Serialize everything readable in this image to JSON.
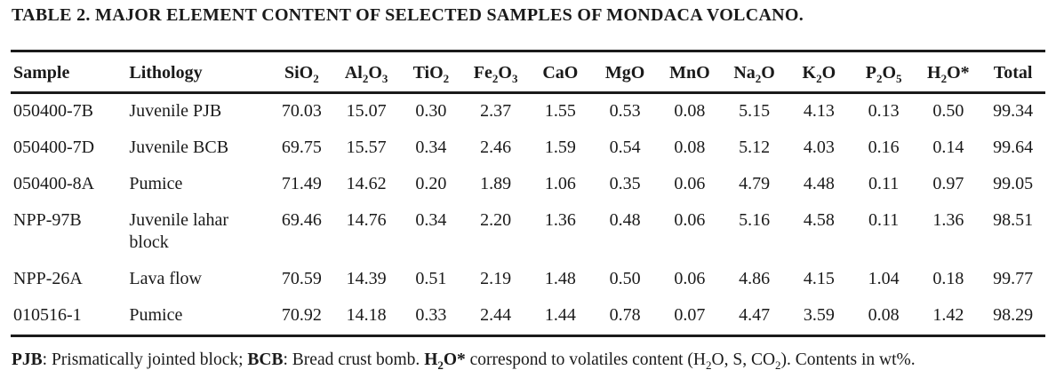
{
  "page": {
    "title": "TABLE 2. MAJOR ELEMENT CONTENT OF SELECTED SAMPLES OF MONDACA VOLCANO."
  },
  "table": {
    "headers": [
      {
        "id": "sample",
        "align": "left",
        "runs": [
          {
            "t": "Sample"
          }
        ]
      },
      {
        "id": "lithology",
        "align": "left",
        "runs": [
          {
            "t": "Lithology"
          }
        ]
      },
      {
        "id": "sio2",
        "runs": [
          {
            "t": "SiO"
          },
          {
            "t": "2",
            "s": true
          }
        ]
      },
      {
        "id": "al2o3",
        "runs": [
          {
            "t": "Al"
          },
          {
            "t": "2",
            "s": true
          },
          {
            "t": "O"
          },
          {
            "t": "3",
            "s": true
          }
        ]
      },
      {
        "id": "tio2",
        "runs": [
          {
            "t": "TiO"
          },
          {
            "t": "2",
            "s": true
          }
        ]
      },
      {
        "id": "fe2o3",
        "runs": [
          {
            "t": "Fe"
          },
          {
            "t": "2",
            "s": true
          },
          {
            "t": "O"
          },
          {
            "t": "3",
            "s": true
          }
        ]
      },
      {
        "id": "cao",
        "runs": [
          {
            "t": "CaO"
          }
        ]
      },
      {
        "id": "mgo",
        "runs": [
          {
            "t": "MgO"
          }
        ]
      },
      {
        "id": "mno",
        "runs": [
          {
            "t": "MnO"
          }
        ]
      },
      {
        "id": "na2o",
        "runs": [
          {
            "t": "Na"
          },
          {
            "t": "2",
            "s": true
          },
          {
            "t": "O"
          }
        ]
      },
      {
        "id": "k2o",
        "runs": [
          {
            "t": "K"
          },
          {
            "t": "2",
            "s": true
          },
          {
            "t": "O"
          }
        ]
      },
      {
        "id": "p2o5",
        "runs": [
          {
            "t": "P"
          },
          {
            "t": "2",
            "s": true
          },
          {
            "t": "O"
          },
          {
            "t": "5",
            "s": true
          }
        ]
      },
      {
        "id": "h2o",
        "runs": [
          {
            "t": "H"
          },
          {
            "t": "2",
            "s": true
          },
          {
            "t": "O*"
          }
        ]
      },
      {
        "id": "total",
        "runs": [
          {
            "t": "Total"
          }
        ]
      }
    ],
    "rows": [
      {
        "sample": "050400-7B",
        "lithology": "Juvenile PJB",
        "values": [
          "70.03",
          "15.07",
          "0.30",
          "2.37",
          "1.55",
          "0.53",
          "0.08",
          "5.15",
          "4.13",
          "0.13",
          "0.50",
          "99.34"
        ]
      },
      {
        "sample": "050400-7D",
        "lithology": "Juvenile BCB",
        "values": [
          "69.75",
          "15.57",
          "0.34",
          "2.46",
          "1.59",
          "0.54",
          "0.08",
          "5.12",
          "4.03",
          "0.16",
          "0.14",
          "99.64"
        ]
      },
      {
        "sample": "050400-8A",
        "lithology": "Pumice",
        "values": [
          "71.49",
          "14.62",
          "0.20",
          "1.89",
          "1.06",
          "0.35",
          "0.06",
          "4.79",
          "4.48",
          "0.11",
          "0.97",
          "99.05"
        ]
      },
      {
        "sample": "NPP-97B",
        "lithology": "Juvenile lahar block",
        "values": [
          "69.46",
          "14.76",
          "0.34",
          "2.20",
          "1.36",
          "0.48",
          "0.06",
          "5.16",
          "4.58",
          "0.11",
          "1.36",
          "98.51"
        ]
      },
      {
        "sample": "NPP-26A",
        "lithology": "Lava flow",
        "values": [
          "70.59",
          "14.39",
          "0.51",
          "2.19",
          "1.48",
          "0.50",
          "0.06",
          "4.86",
          "4.15",
          "1.04",
          "0.18",
          "99.77"
        ]
      },
      {
        "sample": "010516-1",
        "lithology": "Pumice",
        "values": [
          "70.92",
          "14.18",
          "0.33",
          "2.44",
          "1.44",
          "0.78",
          "0.07",
          "4.47",
          "3.59",
          "0.08",
          "1.42",
          "98.29"
        ]
      }
    ]
  },
  "footnote": {
    "runs": [
      {
        "t": "PJB",
        "b": true
      },
      {
        "t": ": Prismatically jointed block; "
      },
      {
        "t": "BCB",
        "b": true
      },
      {
        "t": ": Bread crust bomb. "
      },
      {
        "t": "H",
        "b": true
      },
      {
        "t": "2",
        "b": true,
        "s": true
      },
      {
        "t": "O*",
        "b": true
      },
      {
        "t": " correspond to volatiles content (H"
      },
      {
        "t": "2",
        "s": true
      },
      {
        "t": "O, S, CO"
      },
      {
        "t": "2",
        "s": true
      },
      {
        "t": "). Contents in wt%."
      }
    ]
  },
  "colors": {
    "text": "#1a1a1a",
    "rule": "#1a1a1a",
    "background": "#ffffff"
  }
}
